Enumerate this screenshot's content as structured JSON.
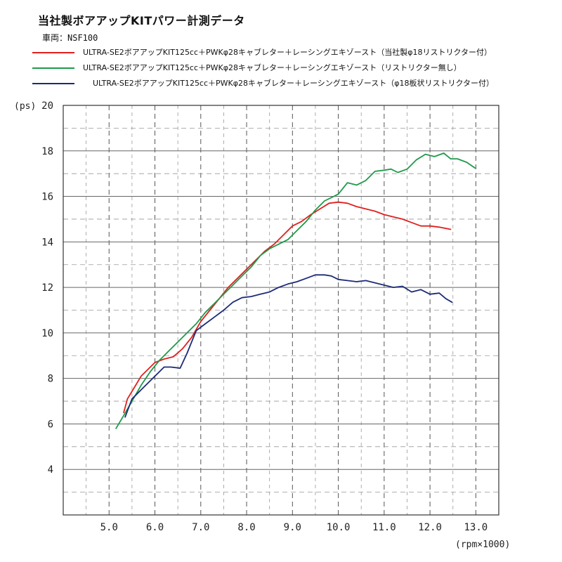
{
  "title": "当社製ボアアップKITパワー計測データ",
  "subtitle": "車両：NSF100",
  "legend": [
    {
      "label": "ULTRA-SE2ボアアップKIT125cc＋PWKφ28キャブレター＋レーシングエキゾースト（当社製φ18リストリクター付）",
      "color": "#e0201e"
    },
    {
      "label": "ULTRA-SE2ボアアップKIT125cc＋PWKφ28キャブレター＋レーシングエキゾースト（リストリクター無し）",
      "color": "#1f9a4a"
    },
    {
      "label": "ULTRA-SE2ボアアップKIT125cc＋PWKφ28キャブレター＋レーシングエキゾースト（φ18板状リストリクター付）",
      "color": "#1c2b78"
    }
  ],
  "chart_data": {
    "type": "line",
    "title": "当社製ボアアップKITパワー計測データ",
    "ylabel": "(ps)",
    "xlabel": "(rpm×1000)",
    "xlim": [
      4.0,
      13.5
    ],
    "ylim": [
      2,
      20
    ],
    "x_ticks": [
      "5.0",
      "6.0",
      "7.0",
      "8.0",
      "9.0",
      "10.0",
      "11.0",
      "12.0",
      "13.0"
    ],
    "y_ticks": [
      "4",
      "6",
      "8",
      "10",
      "12",
      "14",
      "16",
      "18",
      "20"
    ],
    "grid": true,
    "series": [
      {
        "name": "ULTRA-SE2ボアアップKIT125cc＋PWKφ28キャブレター＋レーシングエキゾースト（当社製φ18リストリクター付）",
        "color": "#e0201e",
        "points": [
          [
            5.32,
            6.5
          ],
          [
            5.4,
            7.1
          ],
          [
            5.55,
            7.6
          ],
          [
            5.7,
            8.1
          ],
          [
            5.9,
            8.5
          ],
          [
            6.0,
            8.7
          ],
          [
            6.2,
            8.85
          ],
          [
            6.4,
            8.95
          ],
          [
            6.6,
            9.3
          ],
          [
            6.8,
            9.8
          ],
          [
            7.0,
            10.5
          ],
          [
            7.2,
            11.0
          ],
          [
            7.4,
            11.5
          ],
          [
            7.6,
            12.0
          ],
          [
            7.8,
            12.4
          ],
          [
            8.0,
            12.8
          ],
          [
            8.2,
            13.2
          ],
          [
            8.4,
            13.6
          ],
          [
            8.6,
            13.9
          ],
          [
            8.8,
            14.3
          ],
          [
            9.0,
            14.7
          ],
          [
            9.2,
            14.9
          ],
          [
            9.4,
            15.2
          ],
          [
            9.6,
            15.45
          ],
          [
            9.8,
            15.7
          ],
          [
            10.0,
            15.75
          ],
          [
            10.2,
            15.7
          ],
          [
            10.4,
            15.55
          ],
          [
            10.6,
            15.45
          ],
          [
            10.8,
            15.35
          ],
          [
            11.0,
            15.2
          ],
          [
            11.2,
            15.1
          ],
          [
            11.4,
            15.0
          ],
          [
            11.6,
            14.85
          ],
          [
            11.8,
            14.7
          ],
          [
            12.0,
            14.7
          ],
          [
            12.2,
            14.65
          ],
          [
            12.45,
            14.55
          ]
        ]
      },
      {
        "name": "ULTRA-SE2ボアアップKIT125cc＋PWKφ28キャブレター＋レーシングエキゾースト（リストリクター無し）",
        "color": "#1f9a4a",
        "points": [
          [
            5.15,
            5.8
          ],
          [
            5.3,
            6.3
          ],
          [
            5.5,
            7.0
          ],
          [
            5.7,
            7.7
          ],
          [
            5.9,
            8.3
          ],
          [
            6.1,
            8.8
          ],
          [
            6.3,
            9.2
          ],
          [
            6.5,
            9.6
          ],
          [
            6.7,
            10.0
          ],
          [
            6.9,
            10.4
          ],
          [
            7.1,
            10.9
          ],
          [
            7.3,
            11.3
          ],
          [
            7.5,
            11.7
          ],
          [
            7.7,
            12.1
          ],
          [
            7.9,
            12.5
          ],
          [
            8.1,
            12.9
          ],
          [
            8.3,
            13.4
          ],
          [
            8.5,
            13.7
          ],
          [
            8.7,
            13.9
          ],
          [
            8.9,
            14.1
          ],
          [
            9.1,
            14.5
          ],
          [
            9.3,
            14.9
          ],
          [
            9.5,
            15.4
          ],
          [
            9.7,
            15.8
          ],
          [
            9.9,
            16.0
          ],
          [
            10.0,
            16.1
          ],
          [
            10.2,
            16.6
          ],
          [
            10.4,
            16.5
          ],
          [
            10.6,
            16.7
          ],
          [
            10.8,
            17.1
          ],
          [
            11.0,
            17.15
          ],
          [
            11.15,
            17.2
          ],
          [
            11.3,
            17.05
          ],
          [
            11.5,
            17.2
          ],
          [
            11.7,
            17.6
          ],
          [
            11.9,
            17.85
          ],
          [
            12.1,
            17.75
          ],
          [
            12.3,
            17.9
          ],
          [
            12.45,
            17.65
          ],
          [
            12.6,
            17.65
          ],
          [
            12.8,
            17.5
          ],
          [
            12.98,
            17.25
          ]
        ]
      },
      {
        "name": "ULTRA-SE2ボアアップKIT125cc＋PWKφ28キャブレター＋レーシングエキゾースト（φ18板状リストリクター付）",
        "color": "#1c2b78",
        "points": [
          [
            5.35,
            6.3
          ],
          [
            5.5,
            7.1
          ],
          [
            5.7,
            7.5
          ],
          [
            5.9,
            7.9
          ],
          [
            6.1,
            8.3
          ],
          [
            6.2,
            8.5
          ],
          [
            6.35,
            8.5
          ],
          [
            6.55,
            8.45
          ],
          [
            6.7,
            9.1
          ],
          [
            6.9,
            10.1
          ],
          [
            7.1,
            10.4
          ],
          [
            7.3,
            10.7
          ],
          [
            7.5,
            11.0
          ],
          [
            7.7,
            11.35
          ],
          [
            7.9,
            11.55
          ],
          [
            8.1,
            11.6
          ],
          [
            8.3,
            11.7
          ],
          [
            8.5,
            11.8
          ],
          [
            8.7,
            12.0
          ],
          [
            8.9,
            12.15
          ],
          [
            9.1,
            12.25
          ],
          [
            9.3,
            12.4
          ],
          [
            9.5,
            12.55
          ],
          [
            9.7,
            12.55
          ],
          [
            9.85,
            12.5
          ],
          [
            10.0,
            12.35
          ],
          [
            10.2,
            12.3
          ],
          [
            10.4,
            12.25
          ],
          [
            10.6,
            12.3
          ],
          [
            10.8,
            12.2
          ],
          [
            11.0,
            12.1
          ],
          [
            11.2,
            12.0
          ],
          [
            11.4,
            12.05
          ],
          [
            11.6,
            11.8
          ],
          [
            11.8,
            11.9
          ],
          [
            12.0,
            11.7
          ],
          [
            12.2,
            11.75
          ],
          [
            12.35,
            11.5
          ],
          [
            12.48,
            11.35
          ]
        ]
      }
    ]
  }
}
